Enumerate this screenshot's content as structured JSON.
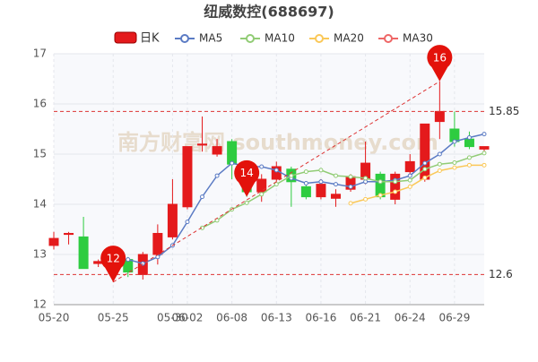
{
  "chart_data": {
    "type": "candlestick",
    "title": "纽威数控(688697)",
    "watermark": "南方财富网 southmoney.com",
    "candle_name": "日K",
    "up_color": "#e41a1c",
    "down_color": "#2ecc40",
    "categories": [
      "05-20",
      null,
      null,
      null,
      "05-25",
      null,
      null,
      null,
      "05-30",
      "06-02",
      null,
      null,
      "06-08",
      null,
      null,
      "06-13",
      null,
      null,
      "06-16",
      null,
      null,
      "06-21",
      null,
      null,
      "06-24",
      null,
      null,
      "06-29",
      null,
      null
    ],
    "open": [
      13.18,
      13.4,
      13.35,
      12.82,
      12.62,
      12.9,
      12.6,
      13.0,
      13.35,
      13.95,
      15.18,
      15.0,
      15.25,
      14.7,
      14.25,
      14.5,
      14.7,
      14.35,
      14.15,
      14.12,
      14.3,
      14.5,
      14.6,
      14.1,
      14.65,
      14.5,
      15.65,
      15.5,
      15.3,
      15.1
    ],
    "close": [
      13.32,
      13.42,
      12.72,
      12.86,
      12.7,
      12.65,
      13.0,
      13.42,
      14.0,
      15.15,
      15.2,
      15.15,
      14.8,
      14.25,
      14.5,
      14.75,
      14.45,
      14.15,
      14.4,
      14.2,
      14.55,
      14.82,
      14.15,
      14.6,
      14.85,
      15.6,
      15.85,
      15.25,
      15.15,
      15.15
    ],
    "high": [
      13.45,
      13.45,
      13.75,
      12.9,
      12.75,
      12.95,
      13.05,
      13.6,
      14.5,
      15.15,
      15.75,
      15.3,
      15.3,
      14.85,
      14.6,
      14.85,
      14.75,
      14.4,
      14.5,
      14.3,
      14.6,
      15.25,
      14.65,
      14.65,
      15.0,
      15.6,
      16.45,
      15.85,
      15.45,
      15.15
    ],
    "low": [
      13.1,
      13.2,
      12.72,
      12.75,
      12.45,
      12.55,
      12.5,
      12.8,
      13.3,
      13.9,
      15.05,
      14.95,
      14.5,
      14.15,
      14.05,
      14.45,
      13.95,
      14.1,
      14.1,
      13.95,
      14.25,
      14.4,
      14.1,
      14.0,
      14.55,
      14.45,
      15.3,
      15.15,
      15.1,
      15.05
    ],
    "series": [
      {
        "name": "MA5",
        "color": "#5b7bc4",
        "values": [
          null,
          null,
          null,
          null,
          null,
          12.9,
          12.82,
          12.95,
          13.18,
          13.65,
          14.15,
          14.57,
          14.82,
          14.75,
          14.75,
          14.68,
          14.52,
          14.42,
          14.45,
          14.4,
          14.35,
          14.45,
          14.45,
          14.48,
          14.57,
          14.82,
          15.0,
          15.25,
          15.33,
          15.4
        ]
      },
      {
        "name": "MA10",
        "color": "#91cc75",
        "values": [
          null,
          null,
          null,
          null,
          null,
          null,
          null,
          null,
          null,
          null,
          13.53,
          13.68,
          13.9,
          14.03,
          14.2,
          14.4,
          14.57,
          14.65,
          14.68,
          14.57,
          14.55,
          14.52,
          14.45,
          14.45,
          14.48,
          14.7,
          14.8,
          14.83,
          14.93,
          15.02
        ]
      },
      {
        "name": "MA20",
        "color": "#fac858",
        "values": [
          null,
          null,
          null,
          null,
          null,
          null,
          null,
          null,
          null,
          null,
          null,
          null,
          null,
          null,
          null,
          null,
          null,
          null,
          null,
          null,
          14.02,
          14.1,
          14.18,
          14.25,
          14.35,
          14.53,
          14.67,
          14.73,
          14.78,
          14.78
        ]
      },
      {
        "name": "MA30",
        "color": "#ee6666",
        "values": [
          null,
          null,
          null,
          null,
          null,
          null,
          null,
          null,
          null,
          null,
          null,
          null,
          null,
          null,
          null,
          null,
          null,
          null,
          null,
          null,
          null,
          null,
          null,
          null,
          null,
          null,
          null,
          null,
          null,
          null
        ]
      }
    ],
    "markers": [
      {
        "label": "12",
        "index": 4,
        "value": 12.45
      },
      {
        "label": "14",
        "index": 13,
        "value": 14.15
      },
      {
        "label": "16",
        "index": 26,
        "value": 16.45
      }
    ],
    "ref_lines": [
      15.85,
      12.6
    ],
    "ylim": [
      12,
      17
    ],
    "yticks": [
      12,
      13,
      14,
      15,
      16,
      17
    ],
    "grid": true
  }
}
